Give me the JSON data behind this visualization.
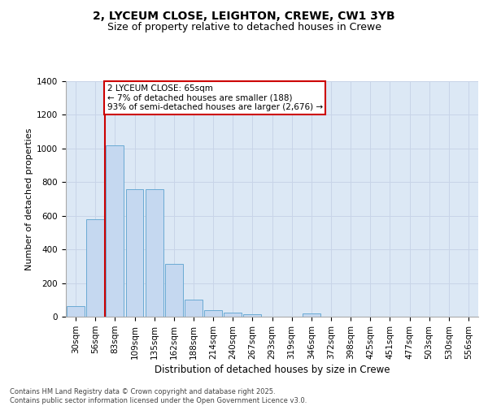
{
  "title_line1": "2, LYCEUM CLOSE, LEIGHTON, CREWE, CW1 3YB",
  "title_line2": "Size of property relative to detached houses in Crewe",
  "xlabel": "Distribution of detached houses by size in Crewe",
  "ylabel": "Number of detached properties",
  "categories": [
    "30sqm",
    "56sqm",
    "83sqm",
    "109sqm",
    "135sqm",
    "162sqm",
    "188sqm",
    "214sqm",
    "240sqm",
    "267sqm",
    "293sqm",
    "319sqm",
    "346sqm",
    "372sqm",
    "398sqm",
    "425sqm",
    "451sqm",
    "477sqm",
    "503sqm",
    "530sqm",
    "556sqm"
  ],
  "values": [
    65,
    580,
    1020,
    760,
    760,
    315,
    100,
    40,
    25,
    15,
    0,
    0,
    20,
    0,
    0,
    0,
    0,
    0,
    0,
    0,
    0
  ],
  "bar_color": "#c5d8f0",
  "bar_edge_color": "#6aaad4",
  "grid_color": "#c8d4e8",
  "background_color": "#dce8f5",
  "red_line_x": 1.5,
  "annotation_text": "2 LYCEUM CLOSE: 65sqm\n← 7% of detached houses are smaller (188)\n93% of semi-detached houses are larger (2,676) →",
  "annotation_box_facecolor": "#ffffff",
  "annotation_border_color": "#cc0000",
  "ylim": [
    0,
    1400
  ],
  "yticks": [
    0,
    200,
    400,
    600,
    800,
    1000,
    1200,
    1400
  ],
  "footer_text": "Contains HM Land Registry data © Crown copyright and database right 2025.\nContains public sector information licensed under the Open Government Licence v3.0.",
  "red_line_color": "#cc0000",
  "title1_fontsize": 10,
  "title2_fontsize": 9,
  "ylabel_fontsize": 8,
  "xlabel_fontsize": 8.5,
  "tick_fontsize": 7.5,
  "annot_fontsize": 7.5
}
